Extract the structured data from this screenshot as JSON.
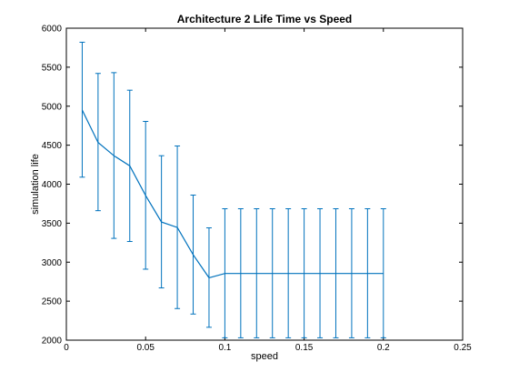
{
  "chart_data": {
    "type": "line",
    "title": "Architecture 2 Life Time vs Speed",
    "xlabel": "speed",
    "ylabel": "simulation life",
    "xlim": [
      0,
      0.25
    ],
    "ylim": [
      2000,
      6000
    ],
    "xticks": [
      0,
      0.05,
      0.1,
      0.15,
      0.2,
      0.25
    ],
    "xtick_labels": [
      "0",
      "0.05",
      "0.1",
      "0.15",
      "0.2",
      "0.25"
    ],
    "yticks": [
      2000,
      2500,
      3000,
      3500,
      4000,
      4500,
      5000,
      5500,
      6000
    ],
    "ytick_labels": [
      "2000",
      "2500",
      "3000",
      "3500",
      "4000",
      "4500",
      "5000",
      "5500",
      "6000"
    ],
    "grid": false,
    "series": [
      {
        "color": "#0072BD",
        "x": [
          0.01,
          0.02,
          0.03,
          0.04,
          0.05,
          0.06,
          0.07,
          0.08,
          0.09,
          0.1,
          0.11,
          0.12,
          0.13,
          0.14,
          0.15,
          0.16,
          0.17,
          0.18,
          0.19,
          0.2
        ],
        "y": [
          4950,
          4535,
          4365,
          4235,
          3855,
          3515,
          3445,
          3095,
          2800,
          2855,
          2855,
          2855,
          2855,
          2855,
          2855,
          2855,
          2855,
          2855,
          2855,
          2855
        ],
        "err_low": [
          4090,
          3660,
          3305,
          3265,
          2910,
          2670,
          2405,
          2335,
          2165,
          2030,
          2030,
          2030,
          2030,
          2030,
          2030,
          2030,
          2030,
          2030,
          2030,
          2030
        ],
        "err_high": [
          5820,
          5420,
          5430,
          5205,
          4805,
          4365,
          4490,
          3860,
          3440,
          3685,
          3685,
          3685,
          3685,
          3685,
          3685,
          3685,
          3685,
          3685,
          3685,
          3685
        ]
      }
    ]
  }
}
